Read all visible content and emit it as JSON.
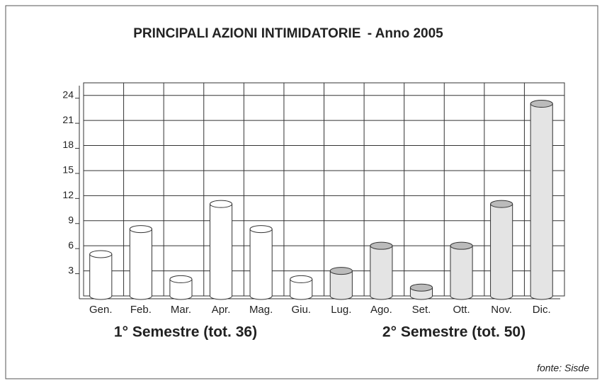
{
  "chart_data": {
    "type": "bar",
    "title": "PRINCIPALI AZIONI INTIMIDATORIE",
    "subtitle": "- Anno 2005",
    "categories": [
      "Gen.",
      "Feb.",
      "Mar.",
      "Apr.",
      "Mag.",
      "Giu.",
      "Lug.",
      "Ago.",
      "Set.",
      "Ott.",
      "Nov.",
      "Dic."
    ],
    "values": [
      5,
      8,
      2,
      11,
      8,
      2,
      3,
      6,
      1,
      6,
      11,
      23
    ],
    "colors": [
      "#ffffff",
      "#ffffff",
      "#ffffff",
      "#ffffff",
      "#ffffff",
      "#ffffff",
      "#e4e4e4",
      "#e4e4e4",
      "#e4e4e4",
      "#e4e4e4",
      "#e4e4e4",
      "#e4e4e4"
    ],
    "ylim": [
      0,
      25.5
    ],
    "yticks": [
      3,
      6,
      9,
      12,
      15,
      18,
      21,
      24
    ],
    "grid": true,
    "annotations": [
      "1° Semestre (tot. 36)",
      "2° Semestre (tot. 50)"
    ],
    "source": "fonte: Sisde"
  }
}
